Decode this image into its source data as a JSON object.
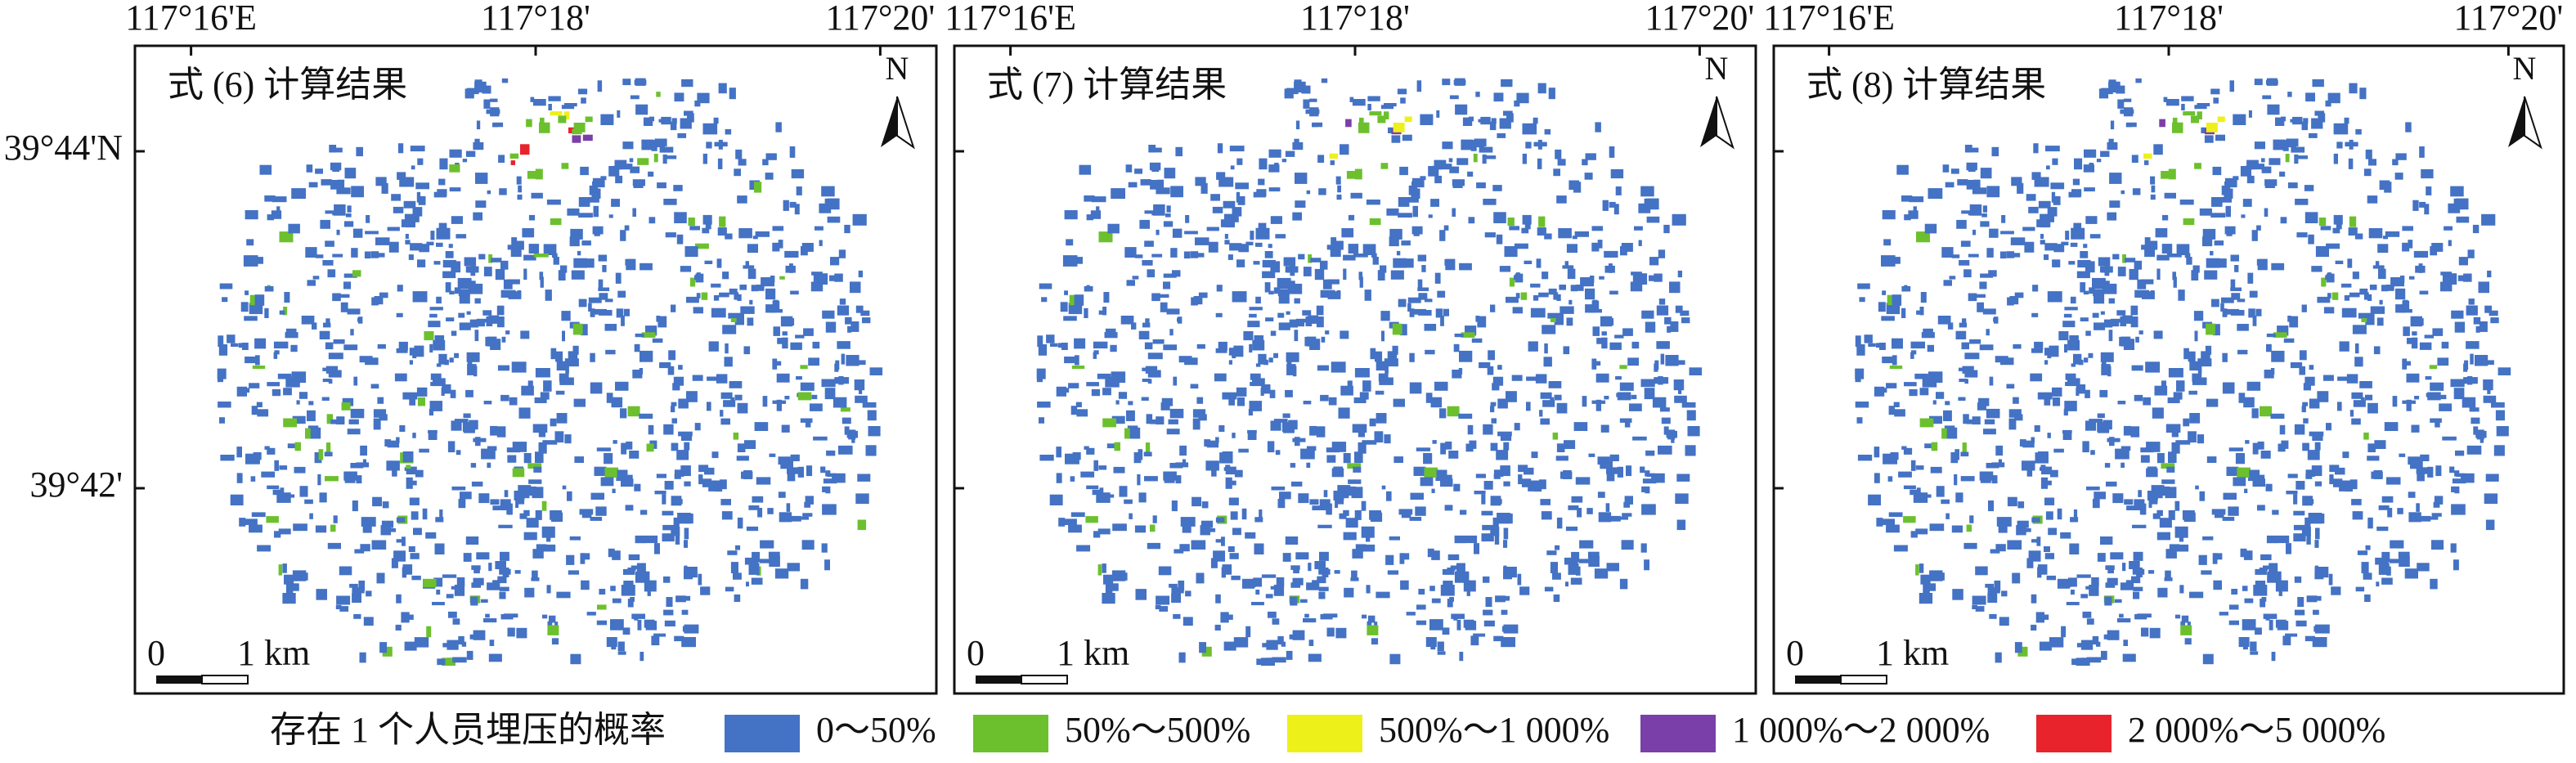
{
  "panels": [
    {
      "title": "式 (6) 计算结果",
      "lon_labels": [
        "117°16'E",
        "117°18'",
        "117°20'"
      ],
      "north": "N",
      "scale": [
        "0",
        "1 km"
      ]
    },
    {
      "title": "式 (7) 计算结果",
      "lon_labels": [
        "117°16'E",
        "117°18'",
        "117°20'"
      ],
      "north": "N",
      "scale": [
        "0",
        "1 km"
      ]
    },
    {
      "title": "式 (8) 计算结果",
      "lon_labels": [
        "117°16'E",
        "117°18'",
        "117°20'"
      ],
      "north": "N",
      "scale": [
        "0",
        "1 km"
      ]
    }
  ],
  "lat_labels": [
    "39°44'N",
    "39°42'"
  ],
  "legend": {
    "title": "存在 1 个人员埋压的概率",
    "items": [
      {
        "label": "0～50%",
        "color": "#4472c4"
      },
      {
        "label": "50%～500%",
        "color": "#6cc02e"
      },
      {
        "label": "500%～1 000%",
        "color": "#eef01a"
      },
      {
        "label": "1 000%～2 000%",
        "color": "#7a3fa8"
      },
      {
        "label": "2 000%～5 000%",
        "color": "#e8232b"
      }
    ]
  }
}
